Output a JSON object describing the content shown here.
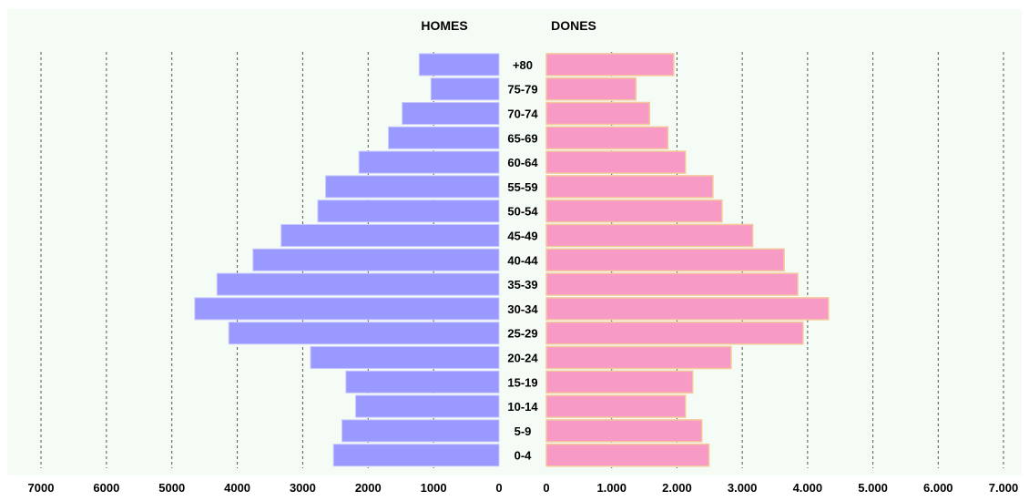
{
  "chart_data": {
    "type": "bar",
    "orientation": "horizontal",
    "layout": "population-pyramid",
    "categories": [
      "0-4",
      "5-9",
      "10-14",
      "15-19",
      "20-24",
      "25-29",
      "30-34",
      "35-39",
      "40-44",
      "45-49",
      "50-54",
      "55-59",
      "60-64",
      "65-69",
      "70-74",
      "75-79",
      "+80"
    ],
    "series": [
      {
        "name": "HOMES",
        "side": "left",
        "color": "#9999ff",
        "values": [
          2530,
          2400,
          2190,
          2340,
          2880,
          4130,
          4650,
          4310,
          3760,
          3330,
          2770,
          2650,
          2140,
          1690,
          1480,
          1040,
          1220
        ]
      },
      {
        "name": "DONES",
        "side": "right",
        "color": "#f79ac6",
        "values": [
          2490,
          2380,
          2130,
          2240,
          2830,
          3930,
          4320,
          3850,
          3640,
          3160,
          2690,
          2550,
          2130,
          1860,
          1580,
          1370,
          1950
        ]
      }
    ],
    "left_axis": {
      "ticks": [
        "7000",
        "6000",
        "5000",
        "4000",
        "3000",
        "2000",
        "1000",
        "0"
      ],
      "range": [
        0,
        7000
      ]
    },
    "right_axis": {
      "ticks": [
        "0",
        "1.000",
        "2.000",
        "3.000",
        "4.000",
        "5.000",
        "6.000",
        "7.000"
      ],
      "range": [
        0,
        7000
      ]
    },
    "grid": true,
    "background": "#f5fbf5"
  }
}
